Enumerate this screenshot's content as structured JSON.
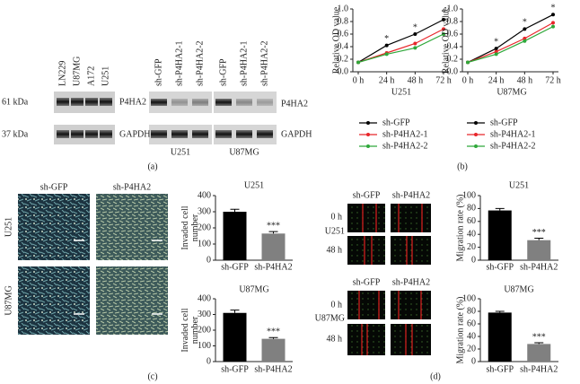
{
  "panel_labels": [
    "(a)",
    "(b)",
    "(c)",
    "(d)"
  ],
  "blots": {
    "left": {
      "lanes": [
        "LN229",
        "U87MG",
        "A172",
        "U251"
      ],
      "markers": [
        "61 kDa",
        "37 kDa"
      ],
      "proteins": [
        "P4HA2",
        "GAPDH"
      ]
    },
    "right": {
      "lanes": [
        "sh-GFP",
        "sh-P4HA2-1",
        "sh-P4HA2-2",
        "sh-GFP",
        "sh-P4HA2-1",
        "sh-P4HA2-2"
      ],
      "proteins": [
        "P4HA2",
        "GAPDH"
      ],
      "groups": [
        "U251",
        "U87MG"
      ]
    }
  },
  "invasion_images": {
    "columns": [
      "sh-GFP",
      "sh-P4HA2"
    ],
    "rows": [
      "U251",
      "U87MG"
    ]
  },
  "migration_images": [
    {
      "cell_line": "U251",
      "times": [
        "0 h",
        "48 h"
      ],
      "columns": [
        "sh-GFP",
        "sh-P4HA2"
      ]
    },
    {
      "cell_line": "U87MG",
      "times": [
        "0 h",
        "48 h"
      ],
      "columns": [
        "sh-GFP",
        "sh-P4HA2"
      ]
    }
  ],
  "chart_data": [
    {
      "type": "line",
      "title": "U251",
      "ylabel": "Relative OD value",
      "categories": [
        "0 h",
        "24 h",
        "48 h",
        "72 h"
      ],
      "series": [
        {
          "name": "sh-GFP",
          "color": "#000000",
          "values": [
            0.15,
            0.42,
            0.6,
            0.83
          ]
        },
        {
          "name": "sh-P4HA2-1",
          "color": "#e8262a",
          "values": [
            0.15,
            0.3,
            0.45,
            0.68
          ]
        },
        {
          "name": "sh-P4HA2-2",
          "color": "#2fa83a",
          "values": [
            0.15,
            0.28,
            0.38,
            0.6
          ]
        }
      ],
      "annotations": [
        null,
        "*",
        "*",
        "*"
      ],
      "ylim": [
        0,
        1.0
      ],
      "yticks": [
        {
          "value": 0,
          "label": "0.0"
        },
        0.2,
        0.4,
        0.6,
        0.8,
        {
          "value": 1.0,
          "label": "1.0"
        }
      ]
    },
    {
      "type": "line",
      "title": "U87MG",
      "ylabel": "Relative OD value",
      "categories": [
        "0 h",
        "24 h",
        "48 h",
        "72 h"
      ],
      "series": [
        {
          "name": "sh-GFP",
          "color": "#000000",
          "values": [
            0.15,
            0.37,
            0.68,
            0.91
          ]
        },
        {
          "name": "sh-P4HA2-1",
          "color": "#e8262a",
          "values": [
            0.15,
            0.32,
            0.53,
            0.78
          ]
        },
        {
          "name": "sh-P4HA2-2",
          "color": "#2fa83a",
          "values": [
            0.15,
            0.28,
            0.49,
            0.72
          ]
        }
      ],
      "annotations": [
        null,
        "*",
        "*",
        "*"
      ],
      "ylim": [
        0,
        1.0
      ],
      "yticks": [
        {
          "value": 0,
          "label": "0.0"
        },
        0.2,
        0.4,
        0.6,
        0.8,
        {
          "value": 1.0,
          "label": "1.0"
        }
      ]
    },
    {
      "type": "bar",
      "title": "U251",
      "ylabel": [
        "Invaded cell",
        "number"
      ],
      "categories": [
        "sh-GFP",
        "sh-P4HA2"
      ],
      "values": [
        300,
        165
      ],
      "errors": [
        15,
        12
      ],
      "colors": [
        "#000000",
        "#808080"
      ],
      "value_annotations": [
        null,
        "***"
      ],
      "ylim": [
        0,
        400
      ],
      "yticks": [
        0,
        100,
        200,
        300,
        400
      ]
    },
    {
      "type": "bar",
      "title": "U87MG",
      "ylabel": [
        "Invaded cell",
        "number"
      ],
      "categories": [
        "sh-GFP",
        "sh-P4HA2"
      ],
      "values": [
        310,
        145
      ],
      "errors": [
        18,
        8
      ],
      "colors": [
        "#000000",
        "#808080"
      ],
      "value_annotations": [
        null,
        "***"
      ],
      "ylim": [
        0,
        400
      ],
      "yticks": [
        0,
        100,
        200,
        300,
        400
      ]
    },
    {
      "type": "bar",
      "title": "U251",
      "ylabel": [
        "Migration rate (%)"
      ],
      "categories": [
        "sh-GFP",
        "sh-P4HA2"
      ],
      "values": [
        77,
        31
      ],
      "errors": [
        3,
        3
      ],
      "colors": [
        "#000000",
        "#808080"
      ],
      "value_annotations": [
        null,
        "***"
      ],
      "ylim": [
        0,
        100
      ],
      "yticks": [
        0,
        20,
        40,
        60,
        80,
        100
      ]
    },
    {
      "type": "bar",
      "title": "U87MG",
      "ylabel": [
        "Migration rate (%)"
      ],
      "categories": [
        "sh-GFP",
        "sh-P4HA2"
      ],
      "values": [
        78,
        28
      ],
      "errors": [
        2,
        2
      ],
      "colors": [
        "#000000",
        "#808080"
      ],
      "value_annotations": [
        null,
        "***"
      ],
      "ylim": [
        0,
        100
      ],
      "yticks": [
        0,
        20,
        40,
        60,
        80,
        100
      ]
    }
  ]
}
